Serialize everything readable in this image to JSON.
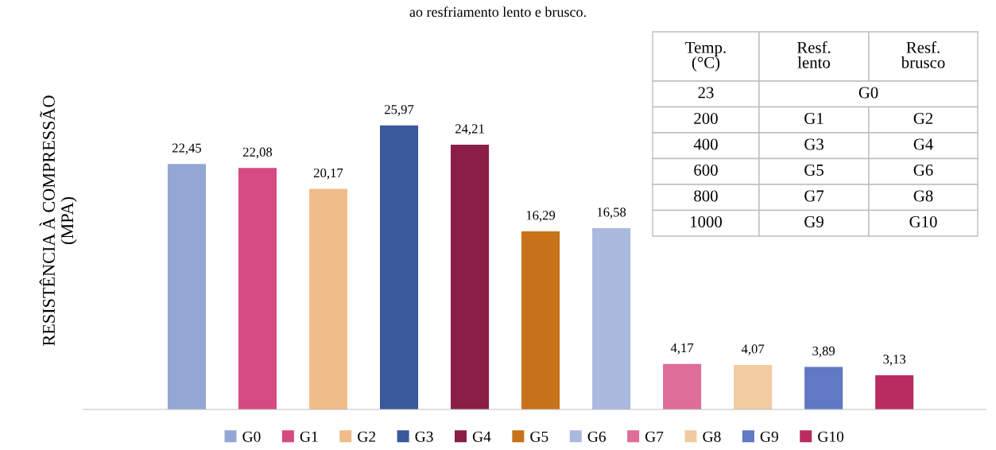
{
  "chart_data": {
    "type": "bar",
    "title": "ao resfriamento lento e brusco.",
    "ylabel": "RESISTÊNCIA À COMPRESSÃO\n(MPA)",
    "categories": [
      null,
      null,
      null,
      null,
      null,
      null,
      null,
      null,
      null,
      null,
      null
    ],
    "stacked": true,
    "legend": "bottom",
    "grid": false,
    "series": [
      {
        "name": "G0",
        "color": "#94a7d4",
        "values": [
          22.45,
          null,
          null,
          null,
          null,
          null,
          null,
          null,
          null,
          null,
          null
        ],
        "value_labels": [
          "22,45",
          null,
          null,
          null,
          null,
          null,
          null,
          null,
          null,
          null,
          null
        ]
      },
      {
        "name": "G1",
        "color": "#d64a82",
        "values": [
          null,
          22.08,
          null,
          null,
          null,
          null,
          null,
          null,
          null,
          null,
          null
        ],
        "value_labels": [
          null,
          "22,08",
          null,
          null,
          null,
          null,
          null,
          null,
          null,
          null,
          null
        ]
      },
      {
        "name": "G2",
        "color": "#f0bd88",
        "values": [
          null,
          null,
          20.17,
          null,
          null,
          null,
          null,
          null,
          null,
          null,
          null
        ],
        "value_labels": [
          null,
          null,
          "20,17",
          null,
          null,
          null,
          null,
          null,
          null,
          null,
          null
        ]
      },
      {
        "name": "G3",
        "color": "#3a589c",
        "values": [
          null,
          null,
          null,
          25.97,
          null,
          null,
          null,
          null,
          null,
          null,
          null
        ],
        "value_labels": [
          null,
          null,
          null,
          "25,97",
          null,
          null,
          null,
          null,
          null,
          null,
          null
        ]
      },
      {
        "name": "G4",
        "color": "#8a1e47",
        "values": [
          null,
          null,
          null,
          null,
          24.21,
          null,
          null,
          null,
          null,
          null,
          null
        ],
        "value_labels": [
          null,
          null,
          null,
          null,
          "24,21",
          null,
          null,
          null,
          null,
          null,
          null
        ]
      },
      {
        "name": "G5",
        "color": "#c87219",
        "values": [
          null,
          null,
          null,
          null,
          null,
          16.29,
          null,
          null,
          null,
          null,
          null
        ],
        "value_labels": [
          null,
          null,
          null,
          null,
          null,
          "16,29",
          null,
          null,
          null,
          null,
          null
        ]
      },
      {
        "name": "G6",
        "color": "#aab9de",
        "values": [
          null,
          null,
          null,
          null,
          null,
          null,
          16.58,
          null,
          null,
          null,
          null
        ],
        "value_labels": [
          null,
          null,
          null,
          null,
          null,
          null,
          "16,58",
          null,
          null,
          null,
          null
        ]
      },
      {
        "name": "G7",
        "color": "#de6e99",
        "values": [
          null,
          null,
          null,
          null,
          null,
          null,
          null,
          4.17,
          null,
          null,
          null
        ],
        "value_labels": [
          null,
          null,
          null,
          null,
          null,
          null,
          null,
          "4,17",
          null,
          null,
          null
        ]
      },
      {
        "name": "G8",
        "color": "#f3cba1",
        "values": [
          null,
          null,
          null,
          null,
          null,
          null,
          null,
          null,
          4.07,
          null,
          null
        ],
        "value_labels": [
          null,
          null,
          null,
          null,
          null,
          null,
          null,
          null,
          "4,07",
          null,
          null
        ]
      },
      {
        "name": "G9",
        "color": "#6178c4",
        "values": [
          null,
          null,
          null,
          null,
          null,
          null,
          null,
          null,
          null,
          3.89,
          null
        ],
        "value_labels": [
          null,
          null,
          null,
          null,
          null,
          null,
          null,
          null,
          null,
          "3,89",
          null
        ]
      },
      {
        "name": "G10",
        "color": "#b82c62",
        "values": [
          null,
          null,
          null,
          null,
          null,
          null,
          null,
          null,
          null,
          null,
          3.13
        ],
        "value_labels": [
          null,
          null,
          null,
          null,
          null,
          null,
          null,
          null,
          null,
          null,
          "3,13"
        ]
      }
    ],
    "annotations": [
      "Temp.\n(°C)",
      "Resf.\nlento",
      "Resf.\nbrusco",
      "23",
      "G0",
      "200",
      "G1",
      "G2",
      "400",
      "G3",
      "G4",
      "600",
      "G5",
      "G6",
      "800",
      "G7",
      "G8",
      "1000",
      "G9",
      "G10"
    ]
  }
}
